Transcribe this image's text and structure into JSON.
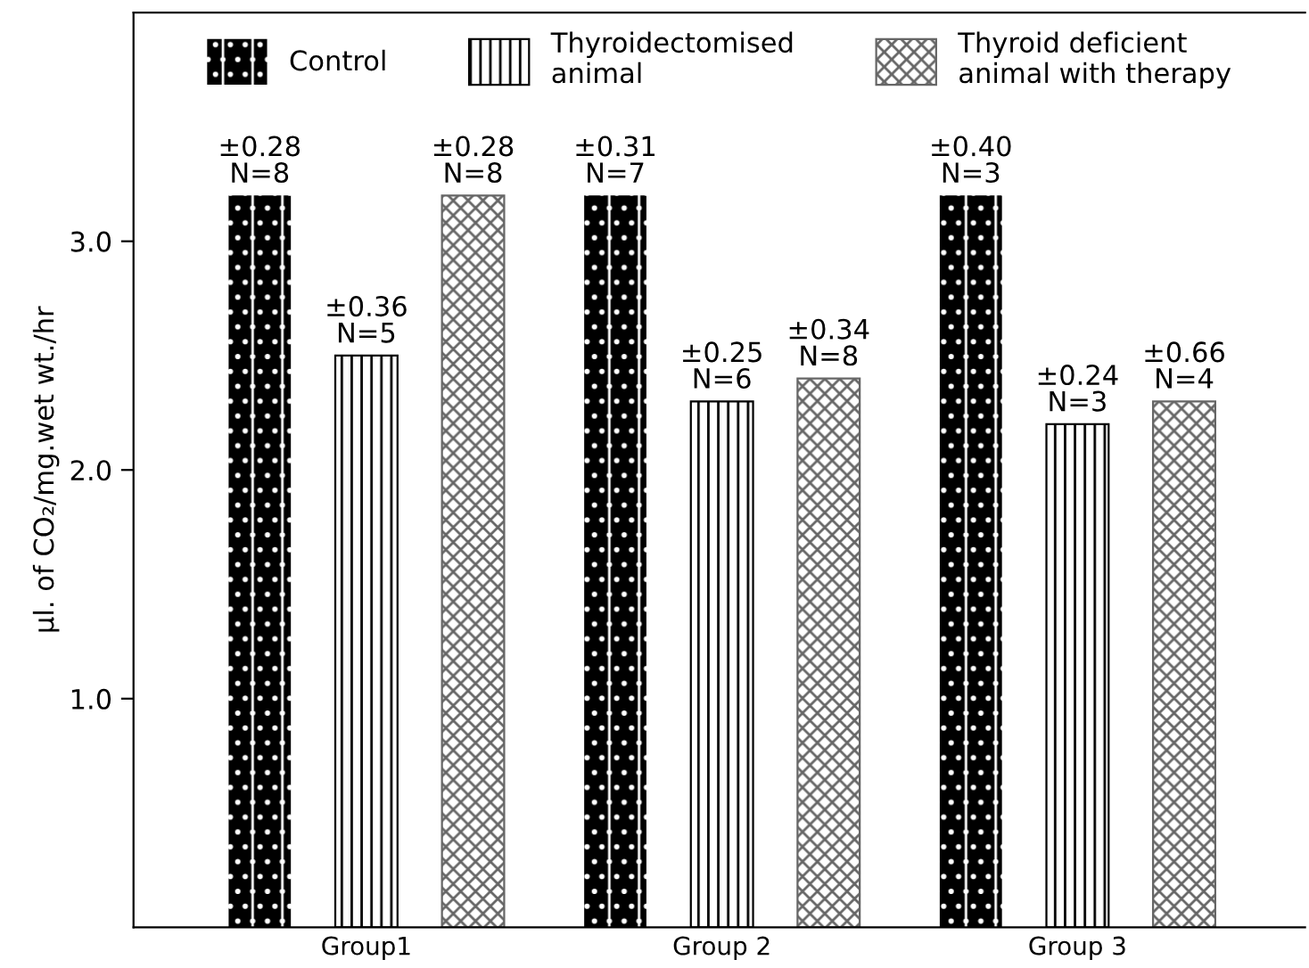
{
  "chart_data": {
    "type": "bar",
    "ylabel": "μl. of CO₂/mg.wet wt./hr",
    "categories": [
      "Group1",
      "Group 2",
      "Group 3"
    ],
    "series": [
      {
        "name": "Control",
        "color": "#000000",
        "values": [
          3.2,
          3.2,
          3.2
        ],
        "value_labels": [
          "±0.28\nN=8",
          "±0.31\nN=7",
          "±0.40\nN=3"
        ]
      },
      {
        "name": "Thyroidectomised\nanimal",
        "color": "#000000",
        "values": [
          2.5,
          2.3,
          2.2
        ],
        "value_labels": [
          "±0.36\nN=5",
          "±0.25\nN=6",
          "±0.24\nN=3"
        ]
      },
      {
        "name": "Thyroid deficient\nanimal with therapy",
        "color": "#666666",
        "values": [
          3.2,
          2.4,
          2.3
        ],
        "value_labels": [
          "±0.28\nN=8",
          "±0.34\nN=8",
          "±0.66\nN=4"
        ]
      }
    ],
    "ylim": [
      0,
      4.0
    ],
    "yticks": [
      {
        "value": 1,
        "label": "1.0"
      },
      {
        "value": 2,
        "label": "2.0"
      },
      {
        "value": 3,
        "label": "3.0"
      }
    ],
    "grid": false,
    "legend": "top"
  }
}
